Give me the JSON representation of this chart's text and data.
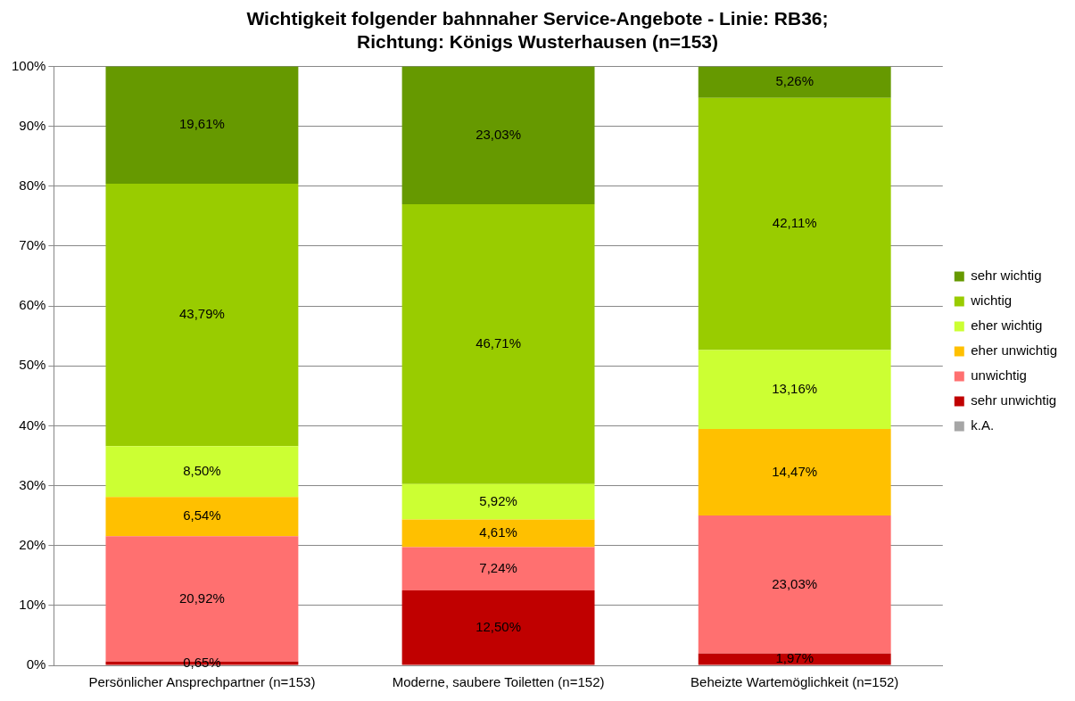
{
  "chart_data": {
    "type": "bar",
    "stacked": true,
    "title": "Wichtigkeit folgender bahnnaher Service-Angebote - Linie: RB36; Richtung: Königs Wusterhausen (n=153)",
    "categories": [
      "Persönlicher Ansprechpartner (n=153)",
      "Moderne, saubere Toiletten (n=152)",
      "Beheizte Wartemöglichkeit (n=152)"
    ],
    "series": [
      {
        "name": "k.A.",
        "color": "#a6a6a6",
        "values": [
          null,
          null,
          null
        ],
        "value_labels": [
          null,
          null,
          null
        ]
      },
      {
        "name": "sehr unwichtig",
        "color": "#c00000",
        "values": [
          0.65,
          12.5,
          1.97
        ],
        "value_labels": [
          "0,65%",
          "12,50%",
          "1,97%"
        ]
      },
      {
        "name": "unwichtig",
        "color": "#ff7070",
        "values": [
          20.92,
          7.24,
          23.03
        ],
        "value_labels": [
          "20,92%",
          "7,24%",
          "23,03%"
        ]
      },
      {
        "name": "eher unwichtig",
        "color": "#ffc000",
        "values": [
          6.54,
          4.61,
          14.47
        ],
        "value_labels": [
          "6,54%",
          "4,61%",
          "14,47%"
        ]
      },
      {
        "name": "eher wichtig",
        "color": "#ccff33",
        "values": [
          8.5,
          5.92,
          13.16
        ],
        "value_labels": [
          "8,50%",
          "5,92%",
          "13,16%"
        ]
      },
      {
        "name": "wichtig",
        "color": "#99cc00",
        "values": [
          43.79,
          46.71,
          42.11
        ],
        "value_labels": [
          "43,79%",
          "46,71%",
          "42,11%"
        ]
      },
      {
        "name": "sehr wichtig",
        "color": "#669900",
        "values": [
          19.61,
          23.03,
          5.26
        ],
        "value_labels": [
          "19,61%",
          "23,03%",
          "5,26%"
        ]
      }
    ],
    "ylim": [
      0,
      100
    ],
    "yticks": [
      {
        "value": 0,
        "label": "0%"
      },
      {
        "value": 10,
        "label": "10%"
      },
      {
        "value": 20,
        "label": "20%"
      },
      {
        "value": 30,
        "label": "30%"
      },
      {
        "value": 40,
        "label": "40%"
      },
      {
        "value": 50,
        "label": "50%"
      },
      {
        "value": 60,
        "label": "60%"
      },
      {
        "value": 70,
        "label": "70%"
      },
      {
        "value": 80,
        "label": "80%"
      },
      {
        "value": 90,
        "label": "90%"
      },
      {
        "value": 100,
        "label": "100%"
      }
    ],
    "grid": "y",
    "legend": "right"
  }
}
